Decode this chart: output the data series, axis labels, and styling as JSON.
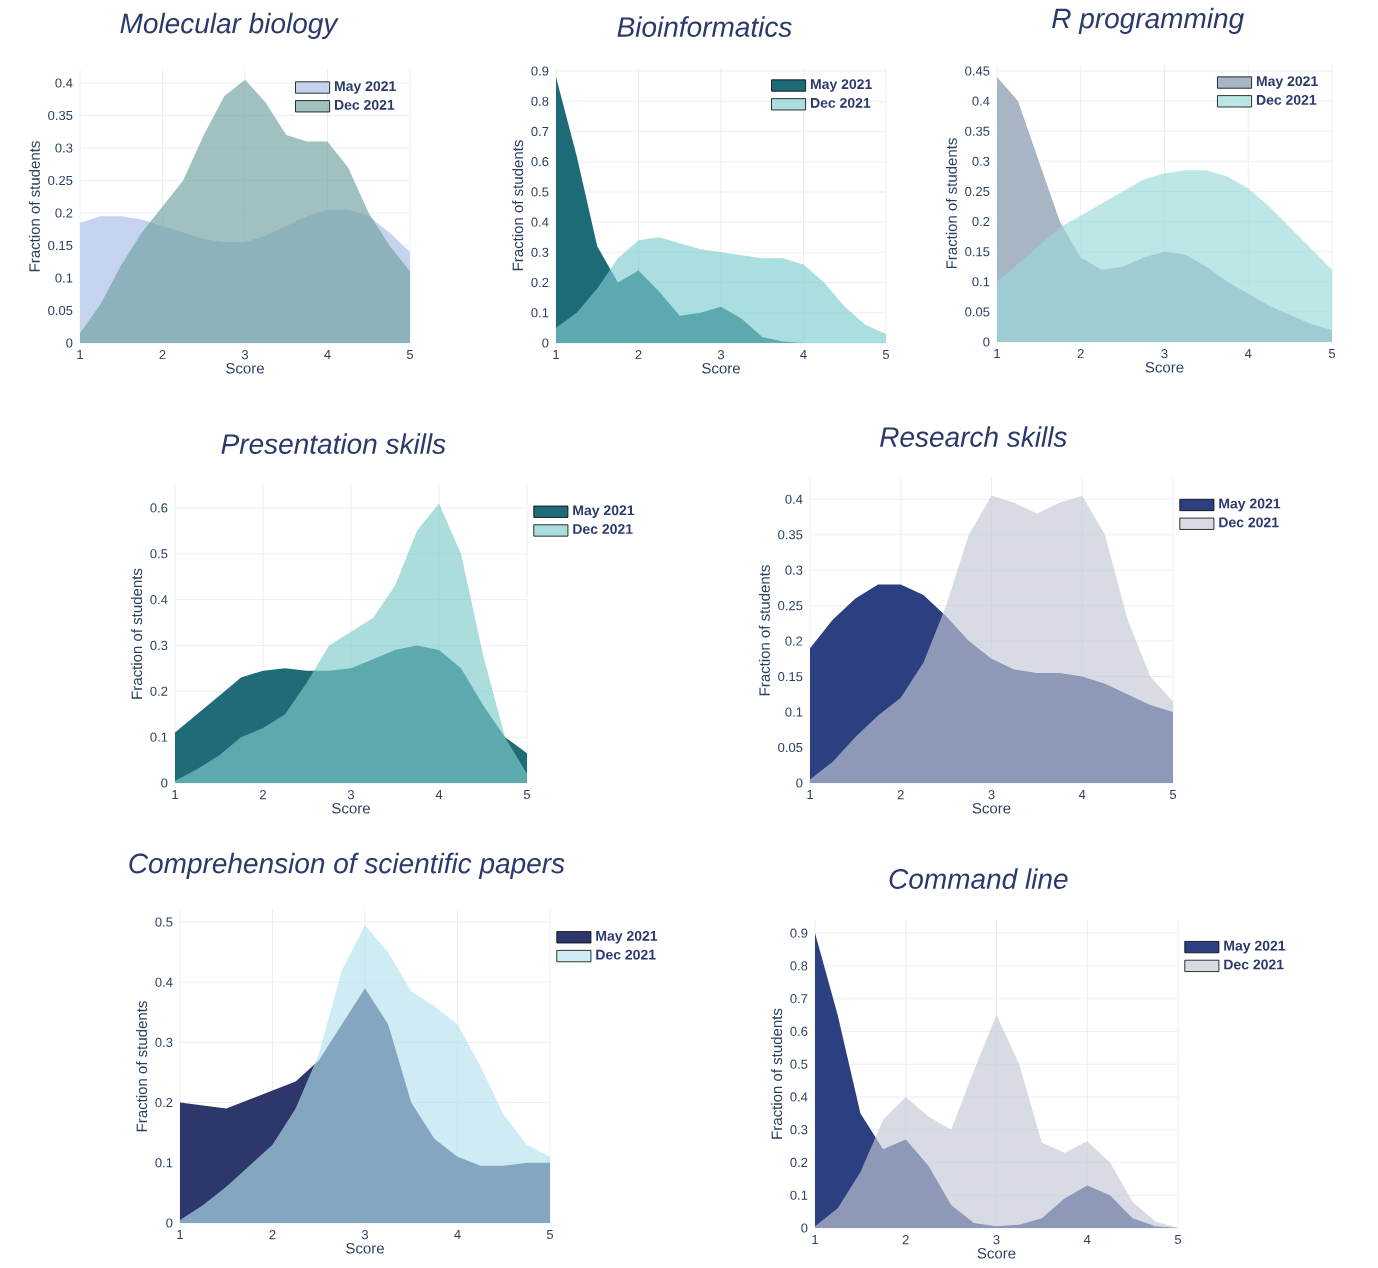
{
  "chart_data": [
    {
      "type": "area",
      "title": "Molecular biology",
      "xlabel": "Score",
      "ylabel": "Fraction of students",
      "x": [
        1,
        1.25,
        1.5,
        1.75,
        2,
        2.25,
        2.5,
        2.75,
        3,
        3.25,
        3.5,
        3.75,
        4,
        4.25,
        4.5,
        4.75,
        5
      ],
      "xlim": [
        1,
        5
      ],
      "xticks": [
        1,
        2,
        3,
        4,
        5
      ],
      "ylim": [
        0,
        0.42
      ],
      "yticks": [
        0,
        0.05,
        0.1,
        0.15,
        0.2,
        0.25,
        0.3,
        0.35,
        0.4
      ],
      "grid": true,
      "legend": "top right",
      "series": [
        {
          "name": "May 2021",
          "color": "#c5d3ee",
          "values": [
            0.185,
            0.195,
            0.195,
            0.19,
            0.18,
            0.17,
            0.16,
            0.155,
            0.155,
            0.165,
            0.18,
            0.195,
            0.205,
            0.205,
            0.195,
            0.17,
            0.14
          ]
        },
        {
          "name": "Dec 2021",
          "color": "#6fa0a0",
          "values": [
            0.015,
            0.06,
            0.12,
            0.17,
            0.21,
            0.25,
            0.32,
            0.38,
            0.405,
            0.37,
            0.32,
            0.31,
            0.31,
            0.27,
            0.2,
            0.15,
            0.11
          ]
        }
      ]
    },
    {
      "type": "area",
      "title": "Bioinformatics",
      "xlabel": "Score",
      "ylabel": "Fraction of students",
      "x": [
        1,
        1.25,
        1.5,
        1.75,
        2,
        2.25,
        2.5,
        2.75,
        3,
        3.25,
        3.5,
        3.75,
        4,
        4.25,
        4.5,
        4.75,
        5
      ],
      "xlim": [
        1,
        5
      ],
      "xticks": [
        1,
        2,
        3,
        4,
        5
      ],
      "ylim": [
        0,
        0.91
      ],
      "yticks": [
        0,
        0.1,
        0.2,
        0.3,
        0.4,
        0.5,
        0.6,
        0.7,
        0.8,
        0.9
      ],
      "grid": true,
      "legend": "top right",
      "series": [
        {
          "name": "May 2021",
          "color": "#1e6b78",
          "values": [
            0.88,
            0.62,
            0.32,
            0.2,
            0.24,
            0.17,
            0.09,
            0.1,
            0.12,
            0.08,
            0.02,
            0.005,
            0,
            0,
            0,
            0,
            0
          ]
        },
        {
          "name": "Dec 2021",
          "color": "#7ecccc",
          "values": [
            0.05,
            0.1,
            0.18,
            0.28,
            0.34,
            0.35,
            0.33,
            0.31,
            0.3,
            0.29,
            0.28,
            0.28,
            0.26,
            0.2,
            0.12,
            0.06,
            0.03
          ]
        }
      ]
    },
    {
      "type": "area",
      "title": "R programming",
      "xlabel": "Score",
      "ylabel": "Fraction of students",
      "x": [
        1,
        1.25,
        1.5,
        1.75,
        2,
        2.25,
        2.5,
        2.75,
        3,
        3.25,
        3.5,
        3.75,
        4,
        4.25,
        4.5,
        4.75,
        5
      ],
      "xlim": [
        1,
        5
      ],
      "xticks": [
        1,
        2,
        3,
        4,
        5
      ],
      "ylim": [
        0,
        0.46
      ],
      "yticks": [
        0,
        0.05,
        0.1,
        0.15,
        0.2,
        0.25,
        0.3,
        0.35,
        0.4,
        0.45
      ],
      "grid": true,
      "legend": "top right",
      "series": [
        {
          "name": "May 2021",
          "color": "#a7b5c5",
          "values": [
            0.44,
            0.4,
            0.3,
            0.2,
            0.14,
            0.12,
            0.125,
            0.14,
            0.15,
            0.145,
            0.125,
            0.1,
            0.08,
            0.06,
            0.045,
            0.03,
            0.02
          ]
        },
        {
          "name": "Dec 2021",
          "color": "#9ad8d8",
          "values": [
            0.1,
            0.13,
            0.16,
            0.19,
            0.21,
            0.23,
            0.25,
            0.27,
            0.28,
            0.285,
            0.285,
            0.275,
            0.255,
            0.225,
            0.19,
            0.155,
            0.12
          ]
        }
      ]
    },
    {
      "type": "area",
      "title": "Presentation skills",
      "xlabel": "Score",
      "ylabel": "Fraction of students",
      "x": [
        1,
        1.25,
        1.5,
        1.75,
        2,
        2.25,
        2.5,
        2.75,
        3,
        3.25,
        3.5,
        3.75,
        4,
        4.25,
        4.5,
        4.75,
        5
      ],
      "xlim": [
        1,
        5
      ],
      "xticks": [
        1,
        2,
        3,
        4,
        5
      ],
      "ylim": [
        0,
        0.65
      ],
      "yticks": [
        0,
        0.1,
        0.2,
        0.3,
        0.4,
        0.5,
        0.6
      ],
      "grid": true,
      "legend": "top right",
      "series": [
        {
          "name": "May 2021",
          "color": "#1f6b78",
          "values": [
            0.11,
            0.15,
            0.19,
            0.23,
            0.245,
            0.25,
            0.245,
            0.245,
            0.25,
            0.27,
            0.29,
            0.3,
            0.29,
            0.25,
            0.17,
            0.1,
            0.065
          ]
        },
        {
          "name": "Dec 2021",
          "color": "#7ecbcb",
          "values": [
            0.005,
            0.03,
            0.06,
            0.1,
            0.12,
            0.15,
            0.22,
            0.3,
            0.33,
            0.36,
            0.43,
            0.55,
            0.61,
            0.5,
            0.28,
            0.1,
            0.02
          ]
        }
      ]
    },
    {
      "type": "area",
      "title": "Research skills",
      "xlabel": "Score",
      "ylabel": "Fraction of students",
      "x": [
        1,
        1.25,
        1.5,
        1.75,
        2,
        2.25,
        2.5,
        2.75,
        3,
        3.25,
        3.5,
        3.75,
        4,
        4.25,
        4.5,
        4.75,
        5
      ],
      "xlim": [
        1,
        5
      ],
      "xticks": [
        1,
        2,
        3,
        4,
        5
      ],
      "ylim": [
        0,
        0.43
      ],
      "yticks": [
        0,
        0.05,
        0.1,
        0.15,
        0.2,
        0.25,
        0.3,
        0.35,
        0.4
      ],
      "grid": true,
      "legend": "top right",
      "series": [
        {
          "name": "May 2021",
          "color": "#2c3f80",
          "values": [
            0.19,
            0.23,
            0.26,
            0.28,
            0.28,
            0.265,
            0.235,
            0.2,
            0.175,
            0.16,
            0.155,
            0.155,
            0.15,
            0.14,
            0.125,
            0.11,
            0.1
          ]
        },
        {
          "name": "Dec 2021",
          "color": "#c3c8d4",
          "values": [
            0.005,
            0.03,
            0.065,
            0.095,
            0.12,
            0.17,
            0.25,
            0.35,
            0.405,
            0.395,
            0.38,
            0.395,
            0.405,
            0.35,
            0.23,
            0.15,
            0.115
          ]
        }
      ]
    },
    {
      "type": "area",
      "title": "Comprehension of scientific papers",
      "xlabel": "Score",
      "ylabel": "Fraction of students",
      "x": [
        1,
        1.25,
        1.5,
        1.75,
        2,
        2.25,
        2.5,
        2.75,
        3,
        3.25,
        3.5,
        3.75,
        4,
        4.25,
        4.5,
        4.75,
        5
      ],
      "xlim": [
        1,
        5
      ],
      "xticks": [
        1,
        2,
        3,
        4,
        5
      ],
      "ylim": [
        0,
        0.52
      ],
      "yticks": [
        0,
        0.1,
        0.2,
        0.3,
        0.4,
        0.5
      ],
      "grid": true,
      "legend": "top right",
      "series": [
        {
          "name": "May 2021",
          "color": "#2d376b",
          "values": [
            0.2,
            0.195,
            0.19,
            0.205,
            0.22,
            0.235,
            0.27,
            0.33,
            0.39,
            0.33,
            0.2,
            0.14,
            0.11,
            0.095,
            0.095,
            0.1,
            0.1
          ]
        },
        {
          "name": "Dec 2021",
          "color": "#b5e2f0",
          "values": [
            0.005,
            0.03,
            0.06,
            0.095,
            0.13,
            0.19,
            0.28,
            0.42,
            0.495,
            0.45,
            0.385,
            0.36,
            0.33,
            0.26,
            0.18,
            0.13,
            0.11
          ]
        }
      ]
    },
    {
      "type": "area",
      "title": "Command line",
      "xlabel": "Score",
      "ylabel": "Fraction of students",
      "x": [
        1,
        1.25,
        1.5,
        1.75,
        2,
        2.25,
        2.5,
        2.75,
        3,
        3.25,
        3.5,
        3.75,
        4,
        4.25,
        4.5,
        4.75,
        5
      ],
      "xlim": [
        1,
        5
      ],
      "xticks": [
        1,
        2,
        3,
        4,
        5
      ],
      "ylim": [
        0,
        0.94
      ],
      "yticks": [
        0,
        0.1,
        0.2,
        0.3,
        0.4,
        0.5,
        0.6,
        0.7,
        0.8,
        0.9
      ],
      "grid": true,
      "legend": "top right",
      "series": [
        {
          "name": "May 2021",
          "color": "#2c3f80",
          "values": [
            0.9,
            0.65,
            0.35,
            0.24,
            0.27,
            0.19,
            0.07,
            0.015,
            0.005,
            0.01,
            0.03,
            0.09,
            0.13,
            0.1,
            0.03,
            0.005,
            0
          ]
        },
        {
          "name": "Dec 2021",
          "color": "#c3c8d4",
          "values": [
            0.005,
            0.06,
            0.17,
            0.33,
            0.4,
            0.34,
            0.3,
            0.48,
            0.65,
            0.5,
            0.26,
            0.23,
            0.265,
            0.2,
            0.08,
            0.02,
            0
          ]
        }
      ]
    }
  ]
}
